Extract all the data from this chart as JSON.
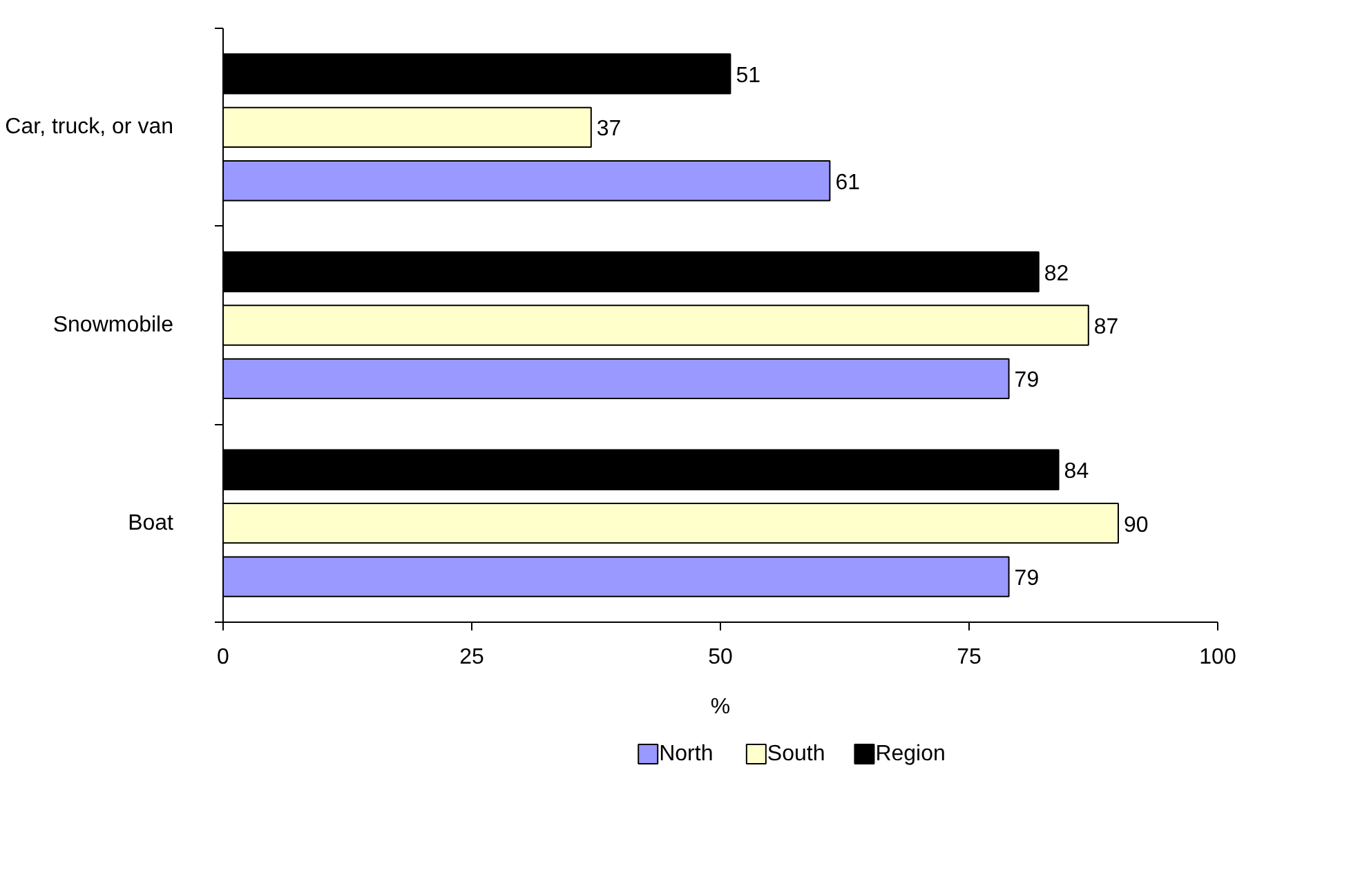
{
  "chart_data": {
    "type": "bar",
    "orientation": "horizontal",
    "categories": [
      "Car, truck, or van",
      "Snowmobile",
      "Boat"
    ],
    "series": [
      {
        "name": "North",
        "color": "#9999ff",
        "values": [
          61,
          79,
          79
        ]
      },
      {
        "name": "South",
        "color": "#ffffcc",
        "values": [
          37,
          87,
          90
        ]
      },
      {
        "name": "Region",
        "color": "#000000",
        "values": [
          51,
          82,
          84
        ]
      }
    ],
    "xlabel": "%",
    "xlim": [
      0,
      100
    ],
    "xticks": [
      0,
      25,
      50,
      75,
      100
    ],
    "grid": false,
    "legend": "bottom",
    "data_labels": true
  }
}
